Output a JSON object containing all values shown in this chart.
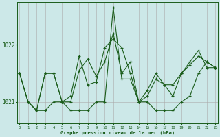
{
  "title": "Graphe pression niveau de la mer (hPa)",
  "bg_color": "#cce8e8",
  "line_color": "#1a5c1a",
  "xlim_min": -0.3,
  "xlim_max": 23.3,
  "ylim_min": 1020.62,
  "ylim_max": 1022.75,
  "yticks": [
    1021,
    1022
  ],
  "xticks": [
    0,
    1,
    2,
    3,
    4,
    5,
    6,
    7,
    8,
    9,
    10,
    11,
    12,
    13,
    14,
    15,
    16,
    17,
    18,
    19,
    20,
    21,
    22,
    23
  ],
  "hours": [
    0,
    1,
    2,
    3,
    4,
    5,
    6,
    7,
    8,
    9,
    10,
    11,
    12,
    13,
    14,
    15,
    16,
    17,
    18,
    19,
    20,
    21,
    22,
    23
  ],
  "s1": [
    1021.5,
    1021.0,
    1020.85,
    1020.85,
    1021.0,
    1021.0,
    1020.85,
    1020.85,
    1020.85,
    1021.0,
    1021.0,
    1022.65,
    1021.4,
    1021.4,
    1021.0,
    1021.0,
    1020.85,
    1020.85,
    1020.85,
    1021.0,
    1021.1,
    1021.5,
    1021.7,
    1021.6
  ],
  "s2": [
    1021.5,
    1021.0,
    1020.85,
    1021.5,
    1021.5,
    1021.0,
    1021.0,
    1021.55,
    1021.75,
    1021.45,
    1021.7,
    1022.2,
    1021.5,
    1021.7,
    1021.0,
    1021.2,
    1021.5,
    1021.3,
    1021.3,
    1021.5,
    1021.65,
    1021.8,
    1021.7,
    1021.6
  ],
  "s3": [
    1021.5,
    1021.0,
    1020.85,
    1021.5,
    1021.5,
    1021.0,
    1021.1,
    1021.8,
    1021.3,
    1021.35,
    1021.95,
    1022.1,
    1021.95,
    1021.5,
    1021.0,
    1021.1,
    1021.4,
    1021.3,
    1021.1,
    1021.5,
    1021.7,
    1021.9,
    1021.6,
    1021.6
  ],
  "figwidth": 3.2,
  "figheight": 2.0,
  "dpi": 100
}
